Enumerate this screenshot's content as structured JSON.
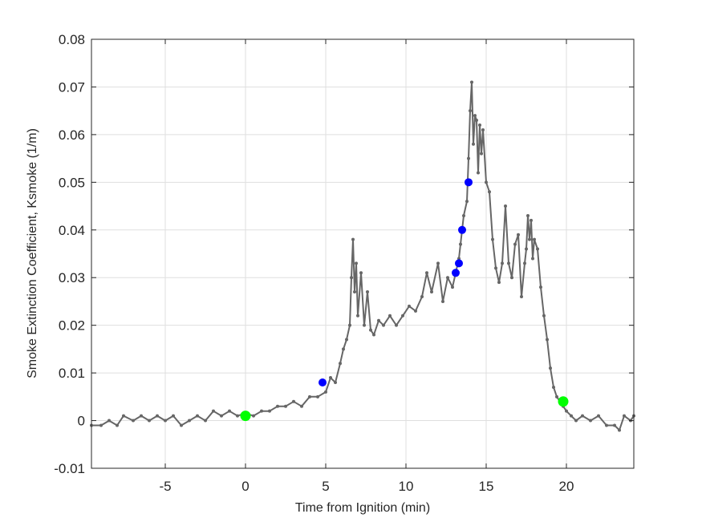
{
  "chart_data": {
    "type": "line",
    "title": "",
    "xlabel": "Time from Ignition (min)",
    "ylabel": "Smoke Extinction Coefficient, Ksmoke (1/m)",
    "xlim": [
      -9.6,
      24.2
    ],
    "ylim": [
      -0.01,
      0.08
    ],
    "xticks": [
      -5,
      0,
      5,
      10,
      15,
      20
    ],
    "yticks": [
      -0.01,
      0,
      0.01,
      0.02,
      0.03,
      0.04,
      0.05,
      0.06,
      0.07,
      0.08
    ],
    "xtick_labels": [
      "-5",
      "0",
      "5",
      "10",
      "15",
      "20"
    ],
    "ytick_labels": [
      "-0.01",
      "0",
      "0.01",
      "0.02",
      "0.03",
      "0.04",
      "0.05",
      "0.06",
      "0.07",
      "0.08"
    ],
    "grid": true,
    "series": [
      {
        "color": "#666666",
        "marker": "dot",
        "x": [
          -9.6,
          -9.0,
          -8.5,
          -8.0,
          -7.6,
          -7.0,
          -6.5,
          -6.0,
          -5.5,
          -5.0,
          -4.5,
          -4.0,
          -3.5,
          -3.0,
          -2.5,
          -2.0,
          -1.5,
          -1.0,
          -0.5,
          0.0,
          0.5,
          1.0,
          1.5,
          2.0,
          2.5,
          3.0,
          3.5,
          4.0,
          4.5,
          5.0,
          5.3,
          5.6,
          5.9,
          6.1,
          6.3,
          6.5,
          6.6,
          6.7,
          6.8,
          6.9,
          7.0,
          7.2,
          7.4,
          7.6,
          7.8,
          8.0,
          8.3,
          8.6,
          9.0,
          9.4,
          9.8,
          10.2,
          10.6,
          11.0,
          11.3,
          11.6,
          12.0,
          12.3,
          12.6,
          12.9,
          13.1,
          13.3,
          13.4,
          13.6,
          13.8,
          13.9,
          14.0,
          14.1,
          14.2,
          14.3,
          14.4,
          14.5,
          14.6,
          14.7,
          14.8,
          15.0,
          15.2,
          15.4,
          15.6,
          15.8,
          16.0,
          16.2,
          16.4,
          16.6,
          16.8,
          17.0,
          17.2,
          17.4,
          17.5,
          17.6,
          17.7,
          17.8,
          17.9,
          18.0,
          18.2,
          18.4,
          18.6,
          18.8,
          19.0,
          19.2,
          19.4,
          19.6,
          19.8,
          20.0,
          20.3,
          20.6,
          21.0,
          21.5,
          22.0,
          22.5,
          23.0,
          23.3,
          23.6,
          24.0,
          24.2
        ],
        "y": [
          -0.001,
          -0.001,
          0.0,
          -0.001,
          0.001,
          0.0,
          0.001,
          0.0,
          0.001,
          0.0,
          0.001,
          -0.001,
          0.0,
          0.001,
          0.0,
          0.002,
          0.001,
          0.002,
          0.001,
          0.0015,
          0.001,
          0.002,
          0.002,
          0.003,
          0.003,
          0.004,
          0.003,
          0.005,
          0.005,
          0.006,
          0.009,
          0.008,
          0.012,
          0.015,
          0.017,
          0.02,
          0.03,
          0.038,
          0.027,
          0.033,
          0.022,
          0.031,
          0.02,
          0.027,
          0.019,
          0.018,
          0.021,
          0.02,
          0.022,
          0.02,
          0.022,
          0.024,
          0.023,
          0.026,
          0.031,
          0.027,
          0.033,
          0.025,
          0.03,
          0.028,
          0.031,
          0.034,
          0.037,
          0.043,
          0.046,
          0.055,
          0.065,
          0.071,
          0.058,
          0.064,
          0.063,
          0.052,
          0.062,
          0.056,
          0.061,
          0.05,
          0.048,
          0.038,
          0.032,
          0.029,
          0.033,
          0.045,
          0.033,
          0.03,
          0.037,
          0.039,
          0.026,
          0.033,
          0.036,
          0.043,
          0.038,
          0.042,
          0.034,
          0.038,
          0.036,
          0.028,
          0.022,
          0.017,
          0.011,
          0.007,
          0.005,
          0.004,
          0.003,
          0.002,
          0.001,
          0.0,
          0.001,
          0.0,
          0.001,
          -0.001,
          -0.001,
          -0.002,
          0.001,
          0.0,
          0.001
        ]
      }
    ],
    "highlight_points_blue": {
      "color": "#0000ff",
      "x": [
        4.8,
        13.1,
        13.3,
        13.5,
        13.9
      ],
      "y": [
        0.008,
        0.031,
        0.033,
        0.04,
        0.05
      ]
    },
    "highlight_points_green": {
      "color": "#00ff00",
      "x": [
        0.0,
        19.8
      ],
      "y": [
        0.001,
        0.004
      ]
    }
  }
}
